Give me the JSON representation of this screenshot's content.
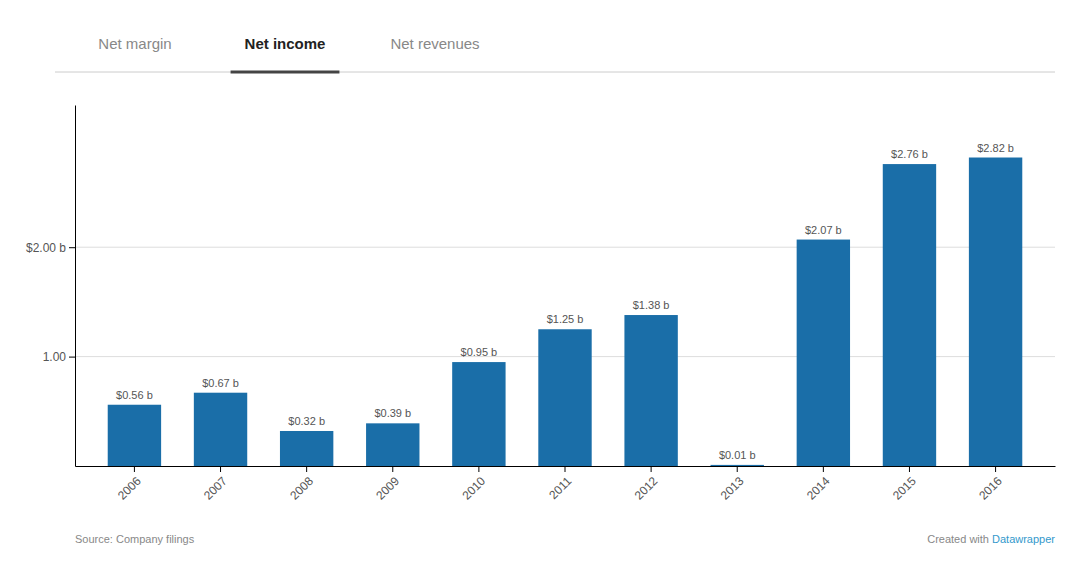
{
  "chart_data": {
    "type": "bar",
    "tabs": [
      "Net margin",
      "Net income",
      "Net revenues"
    ],
    "active_tab": "Net income",
    "categories": [
      "2006",
      "2007",
      "2008",
      "2009",
      "2010",
      "2011",
      "2012",
      "2013",
      "2014",
      "2015",
      "2016"
    ],
    "values": [
      0.56,
      0.67,
      0.32,
      0.39,
      0.95,
      1.25,
      1.38,
      0.01,
      2.07,
      2.76,
      2.82
    ],
    "value_labels": [
      "$0.56 b",
      "$0.67 b",
      "$0.32 b",
      "$0.39 b",
      "$0.95 b",
      "$1.25 b",
      "$1.38 b",
      "$0.01 b",
      "$2.07 b",
      "$2.76 b",
      "$2.82 b"
    ],
    "color": "#1a6ea8",
    "ylim": [
      0,
      3.3
    ],
    "yticks": [
      {
        "value": 1.0,
        "label": "1.00"
      },
      {
        "value": 2.0,
        "label": "$2.00 b"
      }
    ],
    "grid": true,
    "data_labels": true,
    "annotations": [
      "Source: Company filings",
      "Created with ",
      "Datawrapper"
    ]
  }
}
